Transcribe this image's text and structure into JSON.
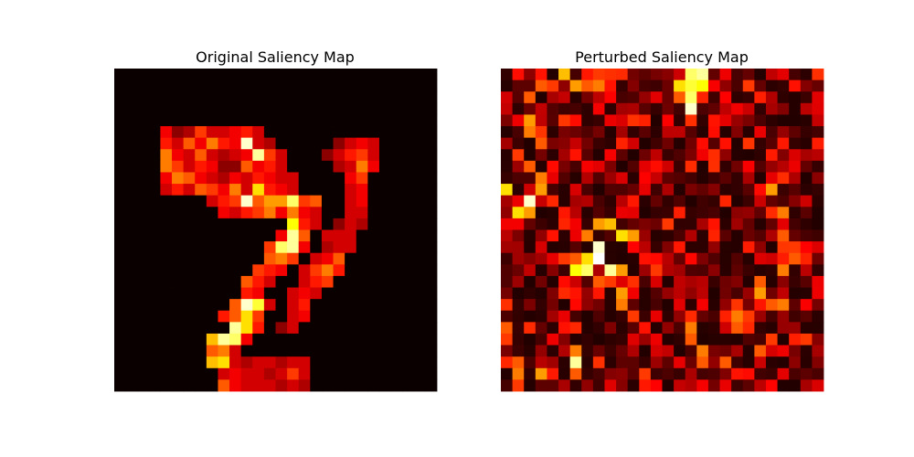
{
  "chart_data": [
    {
      "type": "heatmap",
      "title": "Original Saliency Map",
      "colormap": "hot",
      "vmin": 0,
      "vmax": 1,
      "grid": false,
      "axes": "off",
      "rows": 28,
      "cols": 28,
      "values": [
        "0000000000000000000000000000",
        "0000000000000000000000000000",
        "0000000000000000000000000000",
        "0000000000000000000000000000",
        "0000000000000000000000000000",
        "0000000000000000000000000000",
        "0000000000000000000000000000",
        "0000000000000000000000000000",
        "0000000000000000000000000000",
        "0000000000000000000000000000",
        "0000000000000000000000000000",
        "0000000000000000000000000000",
        "0000000000000000000000000000",
        "0000000000000000000000000000",
        "0000000000000000000000000000",
        "0000000000000000000000000000",
        "0000000000000000000000000000",
        "0000000000000000000000000000",
        "0000000000000000000000000000",
        "0000000000000000000000000000",
        "0000000000000000000000000000",
        "0000000000000000000000000000",
        "0000000000000000000000000000",
        "0000000000000000000000000000",
        "0000000000000000000000000000",
        "0000000000000000000000000000",
        "0000000000000000000000000000",
        "0000000000000000000000000000"
      ],
      "highlights": [
        [
          5,
          4,
          0.35
        ],
        [
          5,
          5,
          0.2
        ],
        [
          5,
          6,
          0.25
        ],
        [
          5,
          7,
          0.45
        ],
        [
          5,
          8,
          0.3
        ],
        [
          5,
          9,
          0.3
        ],
        [
          5,
          10,
          0.35
        ],
        [
          5,
          11,
          0.4
        ],
        [
          5,
          12,
          0.3
        ],
        [
          6,
          4,
          0.4
        ],
        [
          6,
          5,
          0.3
        ],
        [
          6,
          6,
          0.5
        ],
        [
          6,
          7,
          0.35
        ],
        [
          6,
          8,
          0.55
        ],
        [
          6,
          9,
          0.4
        ],
        [
          6,
          10,
          0.35
        ],
        [
          6,
          11,
          0.95
        ],
        [
          6,
          12,
          0.3
        ],
        [
          6,
          13,
          0.25
        ],
        [
          6,
          19,
          0.2
        ],
        [
          6,
          20,
          0.3
        ],
        [
          6,
          21,
          0.35
        ],
        [
          6,
          22,
          0.3
        ],
        [
          7,
          4,
          0.55
        ],
        [
          7,
          5,
          0.35
        ],
        [
          7,
          6,
          0.3
        ],
        [
          7,
          7,
          0.5
        ],
        [
          7,
          8,
          0.3
        ],
        [
          7,
          9,
          0.25
        ],
        [
          7,
          10,
          0.3
        ],
        [
          7,
          11,
          0.35
        ],
        [
          7,
          12,
          0.9
        ],
        [
          7,
          13,
          0.45
        ],
        [
          7,
          14,
          0.3
        ],
        [
          7,
          18,
          0.2
        ],
        [
          7,
          19,
          0.3
        ],
        [
          7,
          20,
          0.4
        ],
        [
          7,
          21,
          0.45
        ],
        [
          7,
          22,
          0.3
        ],
        [
          8,
          4,
          0.55
        ],
        [
          8,
          5,
          0.45
        ],
        [
          8,
          6,
          0.3
        ],
        [
          8,
          7,
          0.4
        ],
        [
          8,
          8,
          0.35
        ],
        [
          8,
          9,
          0.2
        ],
        [
          8,
          10,
          0.2
        ],
        [
          8,
          11,
          0.5
        ],
        [
          8,
          12,
          0.35
        ],
        [
          8,
          13,
          0.4
        ],
        [
          8,
          14,
          0.3
        ],
        [
          8,
          19,
          0.25
        ],
        [
          8,
          20,
          0.3
        ],
        [
          8,
          21,
          0.55
        ],
        [
          8,
          22,
          0.35
        ],
        [
          9,
          4,
          0.35
        ],
        [
          9,
          5,
          0.55
        ],
        [
          9,
          6,
          0.5
        ],
        [
          9,
          7,
          0.35
        ],
        [
          9,
          8,
          0.3
        ],
        [
          9,
          9,
          0.25
        ],
        [
          9,
          10,
          0.35
        ],
        [
          9,
          11,
          0.3
        ],
        [
          9,
          12,
          0.4
        ],
        [
          9,
          13,
          0.35
        ],
        [
          9,
          14,
          0.3
        ],
        [
          9,
          15,
          0.3
        ],
        [
          9,
          20,
          0.35
        ],
        [
          9,
          21,
          0.45
        ],
        [
          10,
          4,
          0.3
        ],
        [
          10,
          5,
          0.4
        ],
        [
          10,
          6,
          0.3
        ],
        [
          10,
          7,
          0.5
        ],
        [
          10,
          8,
          0.45
        ],
        [
          10,
          9,
          0.35
        ],
        [
          10,
          10,
          0.55
        ],
        [
          10,
          11,
          0.3
        ],
        [
          10,
          12,
          0.7
        ],
        [
          10,
          13,
          0.4
        ],
        [
          10,
          14,
          0.35
        ],
        [
          10,
          15,
          0.3
        ],
        [
          10,
          20,
          0.3
        ],
        [
          10,
          21,
          0.35
        ],
        [
          11,
          8,
          0.3
        ],
        [
          11,
          9,
          0.4
        ],
        [
          11,
          10,
          0.45
        ],
        [
          11,
          11,
          0.95
        ],
        [
          11,
          12,
          0.5
        ],
        [
          11,
          13,
          0.6
        ],
        [
          11,
          14,
          0.6
        ],
        [
          11,
          15,
          0.85
        ],
        [
          11,
          16,
          0.45
        ],
        [
          11,
          17,
          0.5
        ],
        [
          11,
          20,
          0.3
        ],
        [
          11,
          21,
          0.35
        ],
        [
          12,
          9,
          0.35
        ],
        [
          12,
          10,
          0.3
        ],
        [
          12,
          11,
          0.4
        ],
        [
          12,
          12,
          0.45
        ],
        [
          12,
          13,
          0.55
        ],
        [
          12,
          14,
          0.35
        ],
        [
          12,
          15,
          0.55
        ],
        [
          12,
          16,
          0.35
        ],
        [
          12,
          17,
          0.3
        ],
        [
          12,
          20,
          0.3
        ],
        [
          12,
          21,
          0.3
        ],
        [
          13,
          15,
          0.75
        ],
        [
          13,
          16,
          0.4
        ],
        [
          13,
          17,
          0.3
        ],
        [
          13,
          19,
          0.2
        ],
        [
          13,
          20,
          0.3
        ],
        [
          13,
          21,
          0.25
        ],
        [
          14,
          14,
          0.35
        ],
        [
          14,
          15,
          0.9
        ],
        [
          14,
          16,
          0.5
        ],
        [
          14,
          18,
          0.3
        ],
        [
          14,
          19,
          0.3
        ],
        [
          14,
          20,
          0.3
        ],
        [
          15,
          13,
          0.45
        ],
        [
          15,
          14,
          0.85
        ],
        [
          15,
          15,
          0.9
        ],
        [
          15,
          16,
          0.35
        ],
        [
          15,
          18,
          0.25
        ],
        [
          15,
          19,
          0.3
        ],
        [
          15,
          20,
          0.3
        ],
        [
          16,
          13,
          0.5
        ],
        [
          16,
          14,
          0.55
        ],
        [
          16,
          15,
          0.45
        ],
        [
          16,
          17,
          0.3
        ],
        [
          16,
          18,
          0.35
        ],
        [
          16,
          19,
          0.5
        ],
        [
          17,
          12,
          0.45
        ],
        [
          17,
          13,
          0.4
        ],
        [
          17,
          14,
          0.35
        ],
        [
          17,
          16,
          0.3
        ],
        [
          17,
          17,
          0.45
        ],
        [
          17,
          18,
          0.55
        ],
        [
          17,
          19,
          0.4
        ],
        [
          18,
          11,
          0.5
        ],
        [
          18,
          12,
          0.4
        ],
        [
          18,
          13,
          0.3
        ],
        [
          18,
          16,
          0.3
        ],
        [
          18,
          17,
          0.4
        ],
        [
          18,
          18,
          0.45
        ],
        [
          19,
          11,
          0.4
        ],
        [
          19,
          12,
          0.35
        ],
        [
          19,
          15,
          0.3
        ],
        [
          19,
          16,
          0.35
        ],
        [
          19,
          17,
          0.3
        ],
        [
          20,
          11,
          0.95
        ],
        [
          20,
          12,
          0.8
        ],
        [
          20,
          10,
          0.5
        ],
        [
          20,
          13,
          0.3
        ],
        [
          20,
          15,
          0.3
        ],
        [
          20,
          16,
          0.4
        ],
        [
          21,
          9,
          0.4
        ],
        [
          21,
          10,
          0.5
        ],
        [
          21,
          11,
          0.7
        ],
        [
          21,
          12,
          0.45
        ],
        [
          21,
          15,
          0.3
        ],
        [
          21,
          16,
          0.35
        ],
        [
          22,
          10,
          0.9
        ],
        [
          22,
          11,
          0.7
        ],
        [
          22,
          12,
          0.4
        ],
        [
          22,
          14,
          0.2
        ],
        [
          22,
          15,
          0.3
        ],
        [
          23,
          8,
          0.65
        ],
        [
          23,
          9,
          0.9
        ],
        [
          23,
          10,
          0.85
        ],
        [
          23,
          11,
          0.35
        ],
        [
          24,
          8,
          0.5
        ],
        [
          24,
          9,
          0.55
        ],
        [
          24,
          10,
          0.3
        ],
        [
          25,
          8,
          0.65
        ],
        [
          25,
          9,
          0.7
        ],
        [
          25,
          10,
          0.3
        ],
        [
          25,
          11,
          0.25
        ],
        [
          25,
          12,
          0.3
        ],
        [
          25,
          13,
          0.3
        ],
        [
          25,
          14,
          0.25
        ],
        [
          25,
          15,
          0.3
        ],
        [
          25,
          16,
          0.3
        ],
        [
          26,
          9,
          0.3
        ],
        [
          26,
          10,
          0.35
        ],
        [
          26,
          11,
          0.3
        ],
        [
          26,
          12,
          0.3
        ],
        [
          26,
          13,
          0.25
        ],
        [
          26,
          14,
          0.3
        ],
        [
          26,
          15,
          0.45
        ],
        [
          26,
          16,
          0.3
        ],
        [
          27,
          9,
          0.5
        ],
        [
          27,
          10,
          0.35
        ],
        [
          27,
          11,
          0.3
        ],
        [
          27,
          12,
          0.3
        ],
        [
          27,
          13,
          0.3
        ],
        [
          27,
          14,
          0.25
        ],
        [
          27,
          15,
          0.3
        ],
        [
          27,
          16,
          0.25
        ]
      ]
    },
    {
      "type": "heatmap",
      "title": "Perturbed Saliency Map",
      "colormap": "hot",
      "vmin": 0,
      "vmax": 1,
      "grid": false,
      "axes": "off",
      "rows": 28,
      "cols": 28,
      "seed": 7,
      "base_range": [
        0.05,
        0.45
      ],
      "highlights": [
        [
          0,
          5,
          0.65
        ],
        [
          0,
          7,
          0.4
        ],
        [
          0,
          8,
          0.45
        ],
        [
          1,
          7,
          0.5
        ],
        [
          1,
          8,
          0.55
        ],
        [
          1,
          3,
          0.5
        ],
        [
          1,
          4,
          0.45
        ],
        [
          1,
          6,
          0.6
        ],
        [
          2,
          0,
          0.3
        ],
        [
          2,
          2,
          0.5
        ],
        [
          1,
          15,
          0.7
        ],
        [
          1,
          16,
          0.8
        ],
        [
          1,
          17,
          0.75
        ],
        [
          0,
          16,
          0.85
        ],
        [
          0,
          17,
          0.9
        ],
        [
          2,
          16,
          0.85
        ],
        [
          2,
          15,
          0.5
        ],
        [
          3,
          16,
          0.95
        ],
        [
          4,
          2,
          0.6
        ],
        [
          5,
          2,
          0.55
        ],
        [
          6,
          3,
          0.5
        ],
        [
          7,
          1,
          0.45
        ],
        [
          8,
          2,
          0.5
        ],
        [
          9,
          3,
          0.55
        ],
        [
          10,
          0,
          0.7
        ],
        [
          10,
          3,
          0.6
        ],
        [
          11,
          2,
          0.95
        ],
        [
          12,
          1,
          0.7
        ],
        [
          12,
          2,
          0.6
        ],
        [
          13,
          8,
          0.6
        ],
        [
          13,
          9,
          0.65
        ],
        [
          14,
          7,
          0.55
        ],
        [
          14,
          10,
          0.7
        ],
        [
          14,
          11,
          0.6
        ],
        [
          15,
          8,
          0.95
        ],
        [
          16,
          8,
          1.0
        ],
        [
          16,
          7,
          0.7
        ],
        [
          16,
          6,
          0.5
        ],
        [
          17,
          6,
          0.75
        ],
        [
          17,
          7,
          0.85
        ],
        [
          17,
          9,
          0.9
        ],
        [
          17,
          10,
          0.6
        ],
        [
          18,
          8,
          0.5
        ],
        [
          18,
          9,
          0.45
        ],
        [
          19,
          10,
          0.6
        ],
        [
          20,
          10,
          0.55
        ],
        [
          21,
          11,
          0.45
        ],
        [
          10,
          23,
          0.6
        ],
        [
          12,
          24,
          0.55
        ],
        [
          14,
          24,
          0.5
        ],
        [
          15,
          25,
          0.45
        ],
        [
          16,
          25,
          0.5
        ],
        [
          17,
          24,
          0.55
        ],
        [
          18,
          22,
          0.5
        ],
        [
          19,
          22,
          0.6
        ],
        [
          20,
          23,
          0.5
        ],
        [
          20,
          24,
          0.55
        ],
        [
          21,
          20,
          0.55
        ],
        [
          22,
          20,
          0.5
        ],
        [
          21,
          21,
          0.45
        ],
        [
          23,
          23,
          0.45
        ],
        [
          24,
          22,
          0.5
        ],
        [
          25,
          19,
          0.5
        ],
        [
          26,
          3,
          0.6
        ],
        [
          25,
          6,
          0.9
        ],
        [
          26,
          6,
          0.5
        ],
        [
          24,
          6,
          0.55
        ],
        [
          27,
          1,
          0.45
        ],
        [
          26,
          1,
          0.55
        ],
        [
          25,
          1,
          0.5
        ],
        [
          22,
          16,
          0.55
        ],
        [
          23,
          16,
          0.5
        ],
        [
          24,
          17,
          0.55
        ],
        [
          25,
          17,
          0.5
        ],
        [
          26,
          12,
          0.45
        ],
        [
          27,
          12,
          0.4
        ],
        [
          22,
          0,
          0.5
        ],
        [
          23,
          0,
          0.45
        ]
      ]
    }
  ]
}
